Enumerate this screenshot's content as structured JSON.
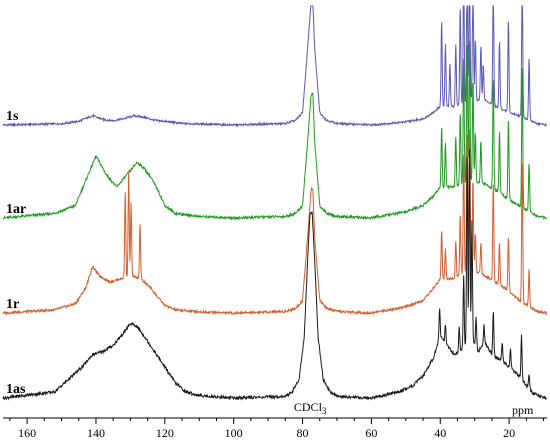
{
  "chart_data": {
    "type": "line",
    "title": "",
    "xlabel": "ppm",
    "ylabel": "",
    "x_reversed": true,
    "xlim": [
      167,
      9
    ],
    "x_ticks": [
      160,
      140,
      120,
      100,
      80,
      60,
      40,
      20
    ],
    "annotations": [
      {
        "text": "CDCl3",
        "x": 77
      }
    ],
    "series": [
      {
        "name": "1s",
        "color": "#5a5ab4",
        "offset": 3,
        "scale": 1.0,
        "profile": [
          [
            167,
            0
          ],
          [
            150,
            0.4
          ],
          [
            145,
            1.2
          ],
          [
            141,
            3
          ],
          [
            138,
            1.8
          ],
          [
            135,
            1.4
          ],
          [
            132,
            2
          ],
          [
            129,
            3
          ],
          [
            126,
            2.5
          ],
          [
            123,
            1.5
          ],
          [
            120,
            1.2
          ],
          [
            115,
            0.5
          ],
          [
            100,
            0
          ],
          [
            85,
            0.5
          ],
          [
            82,
            1.5
          ],
          [
            80,
            4
          ],
          [
            78.5,
            25
          ],
          [
            77.5,
            40
          ],
          [
            77,
            40
          ],
          [
            76.5,
            25
          ],
          [
            75,
            4
          ],
          [
            73,
            1.5
          ],
          [
            70,
            0.5
          ],
          [
            60,
            0
          ],
          [
            50,
            1
          ],
          [
            45,
            2
          ],
          [
            42,
            4
          ],
          [
            40,
            6
          ],
          [
            36,
            6
          ],
          [
            33,
            7
          ],
          [
            31,
            8
          ],
          [
            27,
            8
          ],
          [
            24,
            6
          ],
          [
            20,
            4
          ],
          [
            17,
            3
          ],
          [
            14,
            1.5
          ],
          [
            12,
            0.5
          ],
          [
            9,
            0
          ]
        ],
        "peaks": [
          [
            39.6,
            28
          ],
          [
            38.5,
            20
          ],
          [
            37.2,
            14
          ],
          [
            35.5,
            20
          ],
          [
            34.2,
            32
          ],
          [
            33.2,
            45
          ],
          [
            32.2,
            48
          ],
          [
            31.5,
            48
          ],
          [
            30.5,
            42
          ],
          [
            29.8,
            20
          ],
          [
            28.2,
            18
          ],
          [
            27.5,
            12
          ],
          [
            24.6,
            40
          ],
          [
            22.8,
            22
          ],
          [
            20.2,
            30
          ],
          [
            16.2,
            48
          ],
          [
            14.2,
            20
          ]
        ],
        "noise": 0.4
      },
      {
        "name": "1ar",
        "color": "#229922",
        "offset": 2,
        "scale": 1.0,
        "profile": [
          [
            167,
            0
          ],
          [
            152,
            1.5
          ],
          [
            146,
            4
          ],
          [
            143,
            12
          ],
          [
            140,
            20
          ],
          [
            137,
            14
          ],
          [
            134,
            10
          ],
          [
            131,
            14
          ],
          [
            128,
            18
          ],
          [
            126,
            16
          ],
          [
            124,
            13
          ],
          [
            122,
            9
          ],
          [
            120,
            4
          ],
          [
            117,
            1.5
          ],
          [
            110,
            0.5
          ],
          [
            100,
            0
          ],
          [
            85,
            0.5
          ],
          [
            82,
            1.5
          ],
          [
            80,
            4
          ],
          [
            78.5,
            25
          ],
          [
            77.5,
            40
          ],
          [
            77,
            40
          ],
          [
            76.5,
            25
          ],
          [
            75,
            4
          ],
          [
            73,
            1.5
          ],
          [
            70,
            0.5
          ],
          [
            60,
            0
          ],
          [
            50,
            2
          ],
          [
            45,
            4
          ],
          [
            42,
            7
          ],
          [
            40,
            10
          ],
          [
            36,
            10
          ],
          [
            33,
            11
          ],
          [
            31,
            12
          ],
          [
            27,
            11
          ],
          [
            24,
            9
          ],
          [
            20,
            6
          ],
          [
            17,
            4
          ],
          [
            14,
            2
          ],
          [
            12,
            0.5
          ],
          [
            9,
            0
          ]
        ],
        "peaks": [
          [
            39.6,
            20
          ],
          [
            38.5,
            14
          ],
          [
            35.5,
            16
          ],
          [
            34.2,
            24
          ],
          [
            33.2,
            40
          ],
          [
            32.2,
            46
          ],
          [
            31.5,
            46
          ],
          [
            30.5,
            34
          ],
          [
            29.8,
            16
          ],
          [
            28.2,
            14
          ],
          [
            24.6,
            36
          ],
          [
            22.8,
            20
          ],
          [
            20.2,
            26
          ],
          [
            16.2,
            46
          ],
          [
            14.2,
            16
          ]
        ],
        "noise": 0.5
      },
      {
        "name": "1r",
        "color": "#d06030",
        "offset": 1,
        "scale": 1.0,
        "profile": [
          [
            167,
            0
          ],
          [
            152,
            1
          ],
          [
            146,
            3
          ],
          [
            143,
            8
          ],
          [
            141,
            15
          ],
          [
            139,
            12
          ],
          [
            136,
            10
          ],
          [
            133,
            11
          ],
          [
            130,
            12
          ],
          [
            127,
            11
          ],
          [
            124,
            8
          ],
          [
            122,
            5
          ],
          [
            120,
            2.5
          ],
          [
            117,
            1
          ],
          [
            110,
            0.4
          ],
          [
            100,
            0
          ],
          [
            85,
            0.5
          ],
          [
            82,
            1.5
          ],
          [
            80,
            4
          ],
          [
            78.5,
            25
          ],
          [
            77.5,
            40
          ],
          [
            77,
            40
          ],
          [
            76.5,
            25
          ],
          [
            75,
            4
          ],
          [
            73,
            1.5
          ],
          [
            70,
            0.5
          ],
          [
            60,
            0
          ],
          [
            50,
            2
          ],
          [
            45,
            4
          ],
          [
            42,
            8
          ],
          [
            40,
            11
          ],
          [
            36,
            11
          ],
          [
            33,
            13
          ],
          [
            31,
            14
          ],
          [
            27,
            12
          ],
          [
            24,
            10
          ],
          [
            20,
            7
          ],
          [
            17,
            4
          ],
          [
            14,
            2
          ],
          [
            12,
            0.5
          ],
          [
            9,
            0
          ]
        ],
        "peaks": [
          [
            131.5,
            28
          ],
          [
            130.5,
            34
          ],
          [
            129.8,
            24
          ],
          [
            127.2,
            18
          ],
          [
            39.6,
            16
          ],
          [
            38.5,
            10
          ],
          [
            35.5,
            12
          ],
          [
            34.2,
            20
          ],
          [
            33.2,
            38
          ],
          [
            32.2,
            46
          ],
          [
            31.5,
            46
          ],
          [
            30.5,
            30
          ],
          [
            29.8,
            12
          ],
          [
            28.2,
            10
          ],
          [
            24.6,
            32
          ],
          [
            22.8,
            14
          ],
          [
            20.2,
            18
          ],
          [
            16.2,
            46
          ],
          [
            14.2,
            12
          ]
        ],
        "noise": 0.5
      },
      {
        "name": "1as",
        "color": "#1a1a1a",
        "offset": 0,
        "scale": 1.0,
        "profile": [
          [
            167,
            0
          ],
          [
            152,
            2
          ],
          [
            148,
            6
          ],
          [
            144,
            10
          ],
          [
            141,
            14
          ],
          [
            138,
            15
          ],
          [
            135,
            17
          ],
          [
            132,
            21
          ],
          [
            130,
            24
          ],
          [
            128,
            23
          ],
          [
            126,
            20
          ],
          [
            123,
            15
          ],
          [
            120,
            10
          ],
          [
            117,
            5
          ],
          [
            114,
            2
          ],
          [
            110,
            0.8
          ],
          [
            100,
            0
          ],
          [
            85,
            0.5
          ],
          [
            83,
            2
          ],
          [
            81,
            6
          ],
          [
            79.5,
            20
          ],
          [
            78.5,
            45
          ],
          [
            77.8,
            60
          ],
          [
            77.2,
            60
          ],
          [
            76.5,
            45
          ],
          [
            75.5,
            20
          ],
          [
            74,
            6
          ],
          [
            72,
            2
          ],
          [
            70,
            0.5
          ],
          [
            60,
            0
          ],
          [
            52,
            2
          ],
          [
            48,
            4
          ],
          [
            45,
            7
          ],
          [
            42,
            13
          ],
          [
            40,
            20
          ],
          [
            38,
            17
          ],
          [
            36,
            14
          ],
          [
            33,
            16
          ],
          [
            31,
            20
          ],
          [
            29,
            15
          ],
          [
            27,
            18
          ],
          [
            25,
            14
          ],
          [
            22,
            12
          ],
          [
            19,
            9
          ],
          [
            17,
            7
          ],
          [
            15,
            4
          ],
          [
            13,
            1.5
          ],
          [
            11,
            0.5
          ],
          [
            9,
            0
          ]
        ],
        "peaks": [
          [
            40.2,
            10
          ],
          [
            38.5,
            6
          ],
          [
            34.5,
            8
          ],
          [
            33.2,
            24
          ],
          [
            32.2,
            62
          ],
          [
            31.5,
            62
          ],
          [
            30.8,
            38
          ],
          [
            29.6,
            10
          ],
          [
            27.3,
            6
          ],
          [
            24.6,
            14
          ],
          [
            22.0,
            6
          ],
          [
            19.6,
            6
          ],
          [
            16.4,
            14
          ],
          [
            14.2,
            5
          ]
        ],
        "noise": 0.6
      }
    ]
  },
  "x_axis": {
    "unit_label": "ppm"
  },
  "series_labels": [
    "1s",
    "1ar",
    "1r",
    "1as"
  ],
  "annotation_text": "CDCl3"
}
